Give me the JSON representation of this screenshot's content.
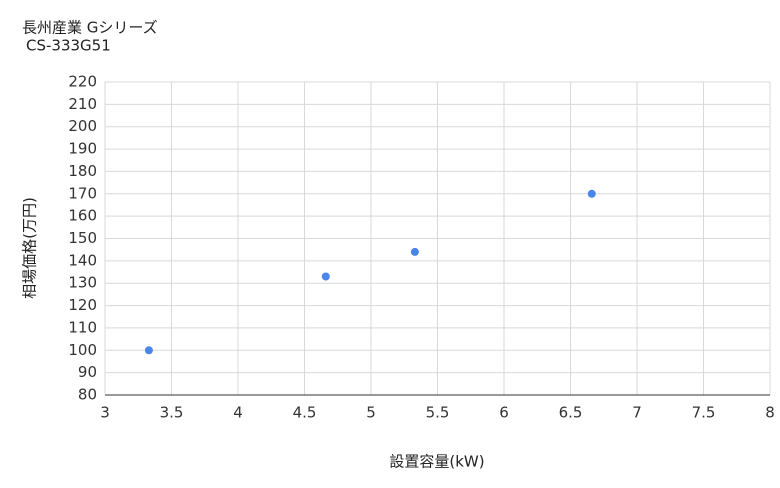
{
  "chart_data": {
    "type": "scatter",
    "title": "長州産業 Gシリーズ",
    "subtitle": "CS-333G51",
    "x_label": "設置容量(kW)",
    "y_label": "相場価格(万円)",
    "series": [
      {
        "color": "#4a86e8",
        "x": [
          3.33,
          4.66,
          5.33,
          6.66
        ],
        "values": [
          100,
          133,
          144,
          170
        ]
      }
    ],
    "xlim": [
      3,
      8
    ],
    "xticks": [
      3,
      3.5,
      4,
      4.5,
      5,
      5.5,
      6,
      6.5,
      7,
      7.5,
      8
    ],
    "ylim": [
      80,
      220
    ],
    "yticks": [
      80,
      90,
      100,
      110,
      120,
      130,
      140,
      150,
      160,
      170,
      180,
      190,
      200,
      210,
      220
    ],
    "grid": true
  }
}
